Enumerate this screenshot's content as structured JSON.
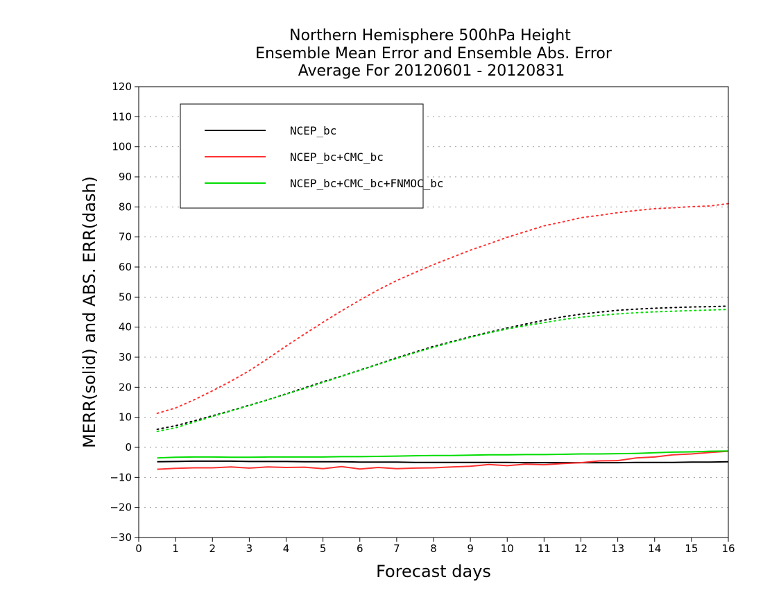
{
  "chart_data": {
    "type": "line",
    "title": [
      "Northern Hemisphere 500hPa Height",
      "Ensemble Mean Error and Ensemble Abs. Error",
      "Average For 20120601 - 20120831"
    ],
    "xlabel": "Forecast days",
    "ylabel": "MERR(solid) and ABS. ERR(dash)",
    "xlim": [
      0,
      16
    ],
    "ylim": [
      -30,
      120
    ],
    "xticks": [
      0,
      1,
      2,
      3,
      4,
      5,
      6,
      7,
      8,
      9,
      10,
      11,
      12,
      13,
      14,
      15,
      16
    ],
    "yticks": [
      -30,
      -20,
      -10,
      0,
      10,
      20,
      30,
      40,
      50,
      60,
      70,
      80,
      90,
      100,
      110,
      120
    ],
    "grid": "horizontal dotted",
    "legend_position": "top-left",
    "x": [
      0.5,
      1,
      1.5,
      2,
      2.5,
      3,
      3.5,
      4,
      4.5,
      5,
      5.5,
      6,
      6.5,
      7,
      7.5,
      8,
      8.5,
      9,
      9.5,
      10,
      10.5,
      11,
      11.5,
      12,
      12.5,
      13,
      13.5,
      14,
      14.5,
      15,
      15.5,
      16
    ],
    "series": [
      {
        "name": "NCEP_bc",
        "color": "#000000",
        "merr": [
          -4.8,
          -4.7,
          -4.6,
          -4.6,
          -4.6,
          -4.7,
          -4.7,
          -4.7,
          -4.8,
          -4.8,
          -4.8,
          -4.9,
          -4.9,
          -4.9,
          -5.0,
          -5.0,
          -5.0,
          -5.0,
          -5.0,
          -5.0,
          -5.1,
          -5.1,
          -5.1,
          -5.1,
          -5.1,
          -5.1,
          -5.0,
          -5.0,
          -5.0,
          -4.9,
          -4.9,
          -4.8
        ],
        "abs_err": [
          6.0,
          7.2,
          8.8,
          10.5,
          12.2,
          14.0,
          15.8,
          17.8,
          19.8,
          21.8,
          23.7,
          25.7,
          27.7,
          29.8,
          31.7,
          33.6,
          35.2,
          36.8,
          38.3,
          39.7,
          41.0,
          42.3,
          43.4,
          44.3,
          45.0,
          45.6,
          46.0,
          46.3,
          46.5,
          46.7,
          46.8,
          47.0
        ]
      },
      {
        "name": "NCEP_bc+CMC_bc",
        "color": "#ff3030",
        "merr": [
          -7.3,
          -7.0,
          -6.8,
          -6.8,
          -6.5,
          -6.9,
          -6.5,
          -6.7,
          -6.6,
          -7.1,
          -6.4,
          -7.2,
          -6.7,
          -7.1,
          -6.9,
          -6.8,
          -6.5,
          -6.3,
          -5.7,
          -6.1,
          -5.6,
          -5.8,
          -5.4,
          -5.1,
          -4.5,
          -4.4,
          -3.5,
          -3.2,
          -2.5,
          -2.2,
          -1.7,
          -1.3
        ],
        "abs_err": [
          11.3,
          13.1,
          15.8,
          18.8,
          22.0,
          25.5,
          29.5,
          33.7,
          37.7,
          41.6,
          45.4,
          49.0,
          52.4,
          55.5,
          58.2,
          60.8,
          63.2,
          65.6,
          67.7,
          69.9,
          71.8,
          73.7,
          75.0,
          76.4,
          77.2,
          78.1,
          78.8,
          79.4,
          79.7,
          80.1,
          80.3,
          81.1
        ]
      },
      {
        "name": "NCEP_bc+CMC_bc+FNMOC_bc",
        "color": "#00dd00",
        "merr": [
          -3.5,
          -3.3,
          -3.2,
          -3.2,
          -3.3,
          -3.3,
          -3.2,
          -3.2,
          -3.2,
          -3.2,
          -3.1,
          -3.1,
          -3.0,
          -2.9,
          -2.8,
          -2.7,
          -2.7,
          -2.6,
          -2.5,
          -2.5,
          -2.4,
          -2.4,
          -2.3,
          -2.2,
          -2.2,
          -2.1,
          -2.0,
          -1.8,
          -1.6,
          -1.5,
          -1.3,
          -1.2
        ],
        "abs_err": [
          5.3,
          6.5,
          8.4,
          10.3,
          12.1,
          13.9,
          15.8,
          17.7,
          19.6,
          21.6,
          23.6,
          25.6,
          27.6,
          29.6,
          31.5,
          33.3,
          35.0,
          36.6,
          38.1,
          39.4,
          40.5,
          41.5,
          42.5,
          43.3,
          43.9,
          44.4,
          44.8,
          45.1,
          45.3,
          45.5,
          45.7,
          45.9
        ]
      }
    ]
  }
}
